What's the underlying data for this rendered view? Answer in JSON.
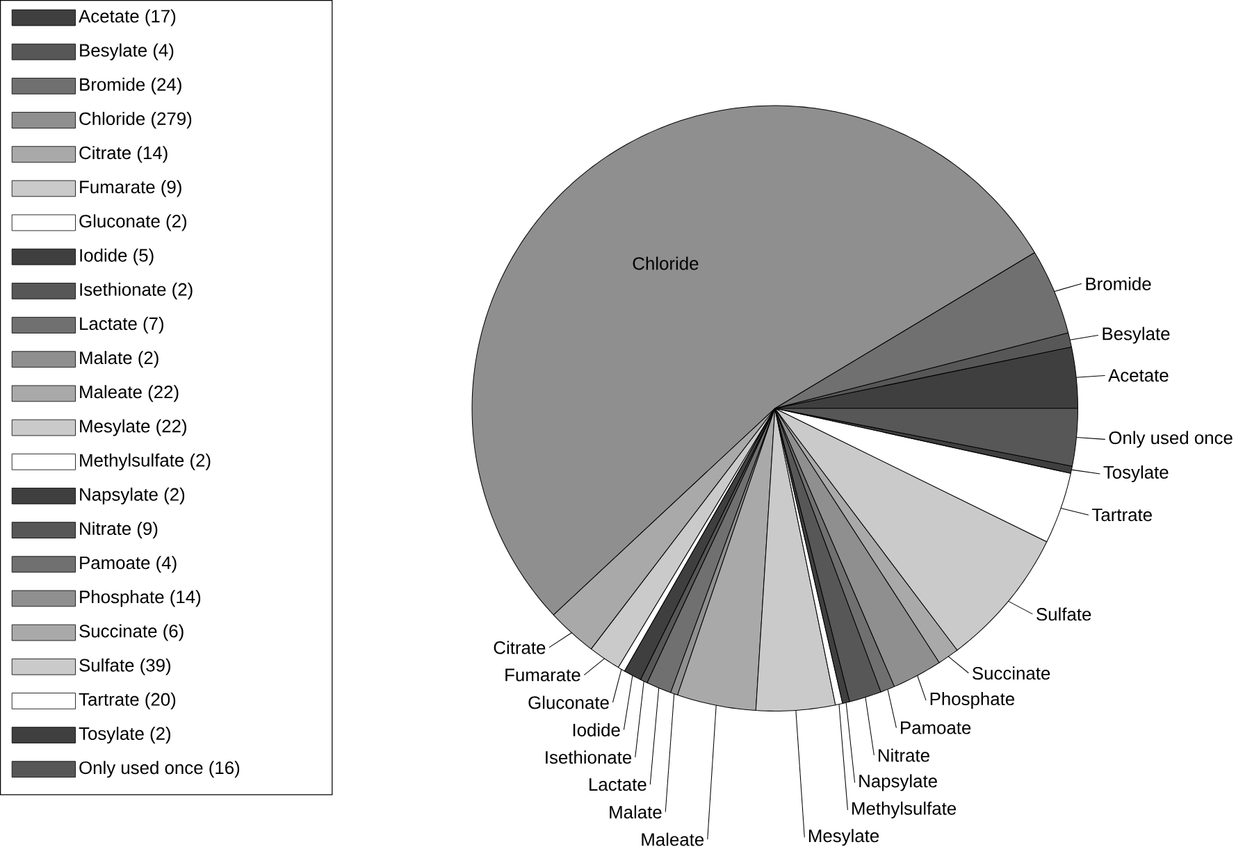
{
  "chart_data": {
    "type": "pie",
    "categories": [
      "Acetate",
      "Besylate",
      "Bromide",
      "Chloride",
      "Citrate",
      "Fumarate",
      "Gluconate",
      "Iodide",
      "Isethionate",
      "Lactate",
      "Malate",
      "Maleate",
      "Mesylate",
      "Methylsulfate",
      "Napsylate",
      "Nitrate",
      "Pamoate",
      "Phosphate",
      "Succinate",
      "Sulfate",
      "Tartrate",
      "Tosylate",
      "Only used once"
    ],
    "values": [
      17,
      4,
      24,
      279,
      14,
      9,
      2,
      5,
      2,
      7,
      2,
      22,
      22,
      2,
      2,
      9,
      4,
      14,
      6,
      39,
      20,
      2,
      16
    ],
    "colors": [
      "#3f3f3f",
      "#575757",
      "#707070",
      "#8f8f8f",
      "#a9a9a9",
      "#cacaca",
      "#ffffff",
      "#3f3f3f",
      "#575757",
      "#707070",
      "#8f8f8f",
      "#a9a9a9",
      "#cacaca",
      "#ffffff",
      "#3f3f3f",
      "#575757",
      "#707070",
      "#8f8f8f",
      "#a9a9a9",
      "#cacaca",
      "#ffffff",
      "#3f3f3f",
      "#575757"
    ],
    "value_labels": [
      "(17)",
      "(4)",
      "(24)",
      "(279)",
      "(14)",
      "(9)",
      "(2)",
      "(5)",
      "(2)",
      "(7)",
      "(2)",
      "(22)",
      "(22)",
      "(2)",
      "(2)",
      "(9)",
      "(4)",
      "(14)",
      "(6)",
      "(39)",
      "(20)",
      "(2)",
      "(16)"
    ],
    "legend": "left"
  }
}
